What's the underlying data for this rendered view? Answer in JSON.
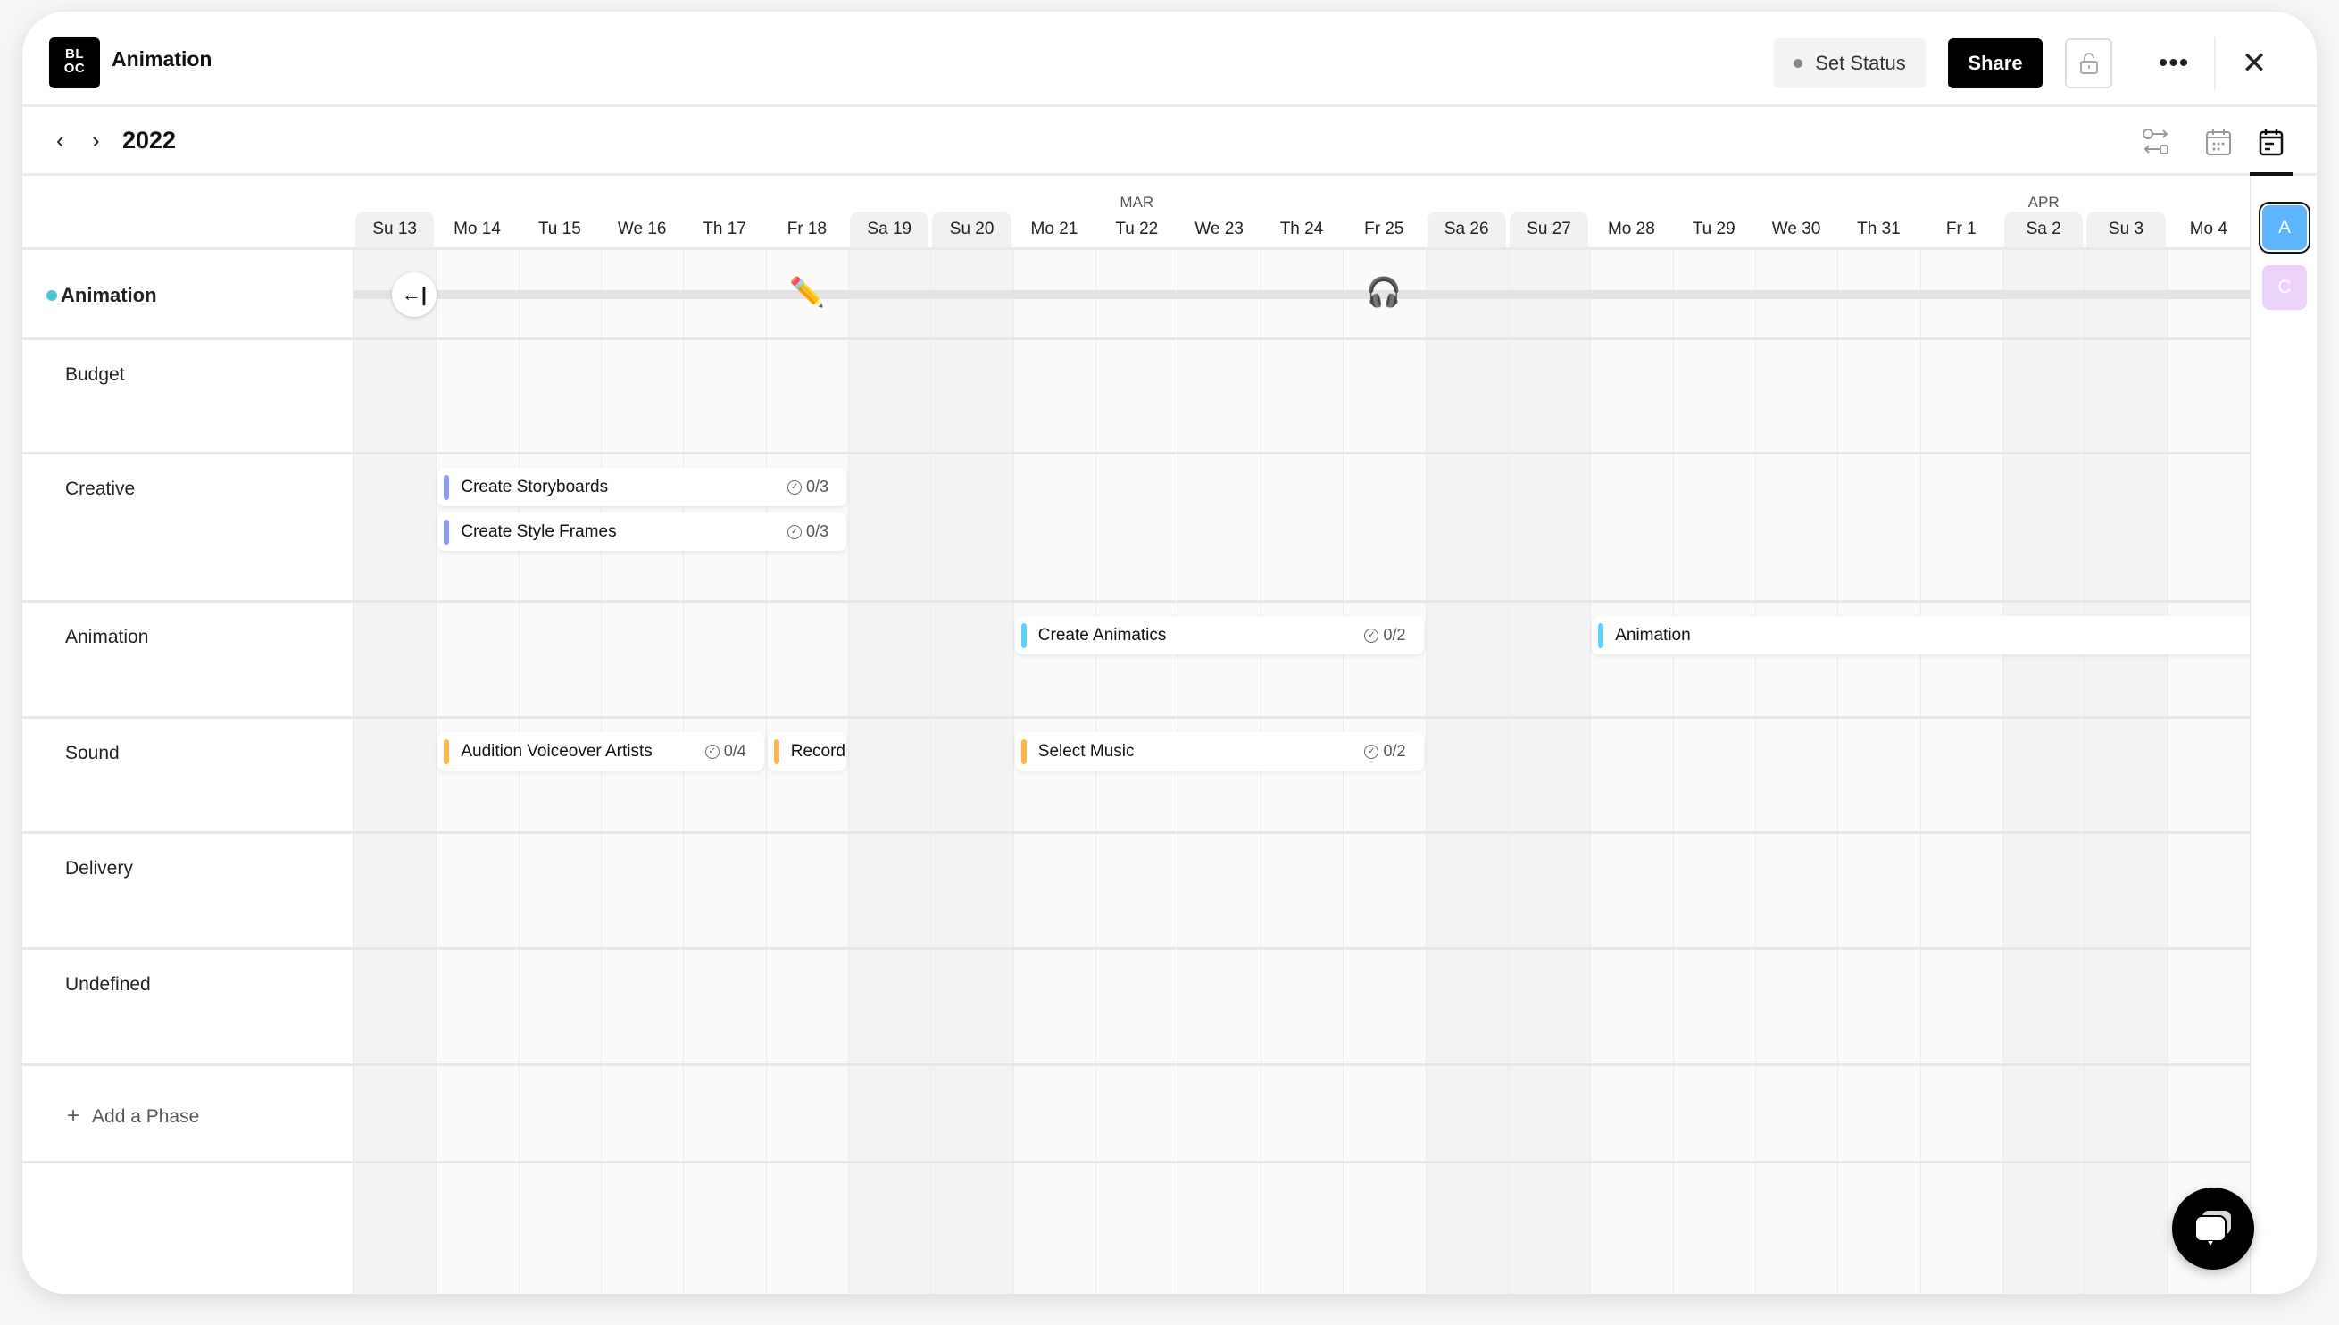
{
  "header": {
    "logo": "BL OC",
    "logo_line1": "BL",
    "logo_line2": "OC",
    "title": "Animation",
    "set_status": "Set Status",
    "share": "Share",
    "more": "•••",
    "close": "✕"
  },
  "toolbar": {
    "year": "2022",
    "prev": "‹",
    "next": "›",
    "views": [
      "dependencies-icon",
      "calendar-icon",
      "timeline-icon"
    ],
    "active_view": "timeline-icon"
  },
  "months": [
    "MAR",
    "APR"
  ],
  "days": [
    {
      "label": "Su 13",
      "weekend": true
    },
    {
      "label": "Mo 14",
      "weekend": false
    },
    {
      "label": "Tu 15",
      "weekend": false
    },
    {
      "label": "We 16",
      "weekend": false
    },
    {
      "label": "Th 17",
      "weekend": false
    },
    {
      "label": "Fr 18",
      "weekend": false
    },
    {
      "label": "Sa 19",
      "weekend": true
    },
    {
      "label": "Su 20",
      "weekend": true
    },
    {
      "label": "Mo 21",
      "weekend": false
    },
    {
      "label": "Tu 22",
      "weekend": false
    },
    {
      "label": "We 23",
      "weekend": false
    },
    {
      "label": "Th 24",
      "weekend": false
    },
    {
      "label": "Fr 25",
      "weekend": false
    },
    {
      "label": "Sa 26",
      "weekend": true
    },
    {
      "label": "Su 27",
      "weekend": true
    },
    {
      "label": "Mo 28",
      "weekend": false
    },
    {
      "label": "Tu 29",
      "weekend": false
    },
    {
      "label": "We 30",
      "weekend": false
    },
    {
      "label": "Th 31",
      "weekend": false
    },
    {
      "label": "Fr 1",
      "weekend": false
    },
    {
      "label": "Sa 2",
      "weekend": true
    },
    {
      "label": "Su 3",
      "weekend": true
    },
    {
      "label": "Mo 4",
      "weekend": false
    }
  ],
  "project": {
    "name": "Animation",
    "color": "#4fc3d4",
    "markers": [
      {
        "emoji": "✏️",
        "day": "Fr 18"
      },
      {
        "emoji": "🎧",
        "day": "Fr 25"
      }
    ]
  },
  "phases": [
    {
      "name": "Budget",
      "tasks": []
    },
    {
      "name": "Creative",
      "tasks": [
        {
          "name": "Create Storyboards",
          "start": "Mo 14",
          "end": "Fr 18",
          "checklist": "0/3",
          "color": "#8b9cf4"
        },
        {
          "name": "Create Style Frames",
          "start": "Mo 14",
          "end": "Fr 18",
          "checklist": "0/3",
          "color": "#8b9cf4"
        }
      ]
    },
    {
      "name": "Animation",
      "tasks": [
        {
          "name": "Create Animatics",
          "start": "Mo 21",
          "end": "Fr 25",
          "checklist": "0/2",
          "color": "#5fd0f8"
        },
        {
          "name": "Animation",
          "start": "Mo 28",
          "end": "Mo 4",
          "checklist": "",
          "color": "#5fd0f8"
        }
      ]
    },
    {
      "name": "Sound",
      "tasks": [
        {
          "name": "Audition Voiceover Artists",
          "start": "Mo 14",
          "end": "Th 17",
          "checklist": "0/4",
          "color": "#ffb44f"
        },
        {
          "name": "Record",
          "start": "Fr 18",
          "end": "Fr 18",
          "checklist": "",
          "color": "#ffb44f"
        },
        {
          "name": "Select Music",
          "start": "Mo 21",
          "end": "Fr 25",
          "checklist": "0/2",
          "color": "#ffb44f"
        }
      ]
    },
    {
      "name": "Delivery",
      "tasks": []
    },
    {
      "name": "Undefined",
      "tasks": []
    }
  ],
  "add_phase": "Add a Phase",
  "avatars": [
    {
      "initial": "A",
      "color": "#5db5ff",
      "active": true
    },
    {
      "initial": "C",
      "color": "#ecd3fb",
      "active": false
    }
  ]
}
